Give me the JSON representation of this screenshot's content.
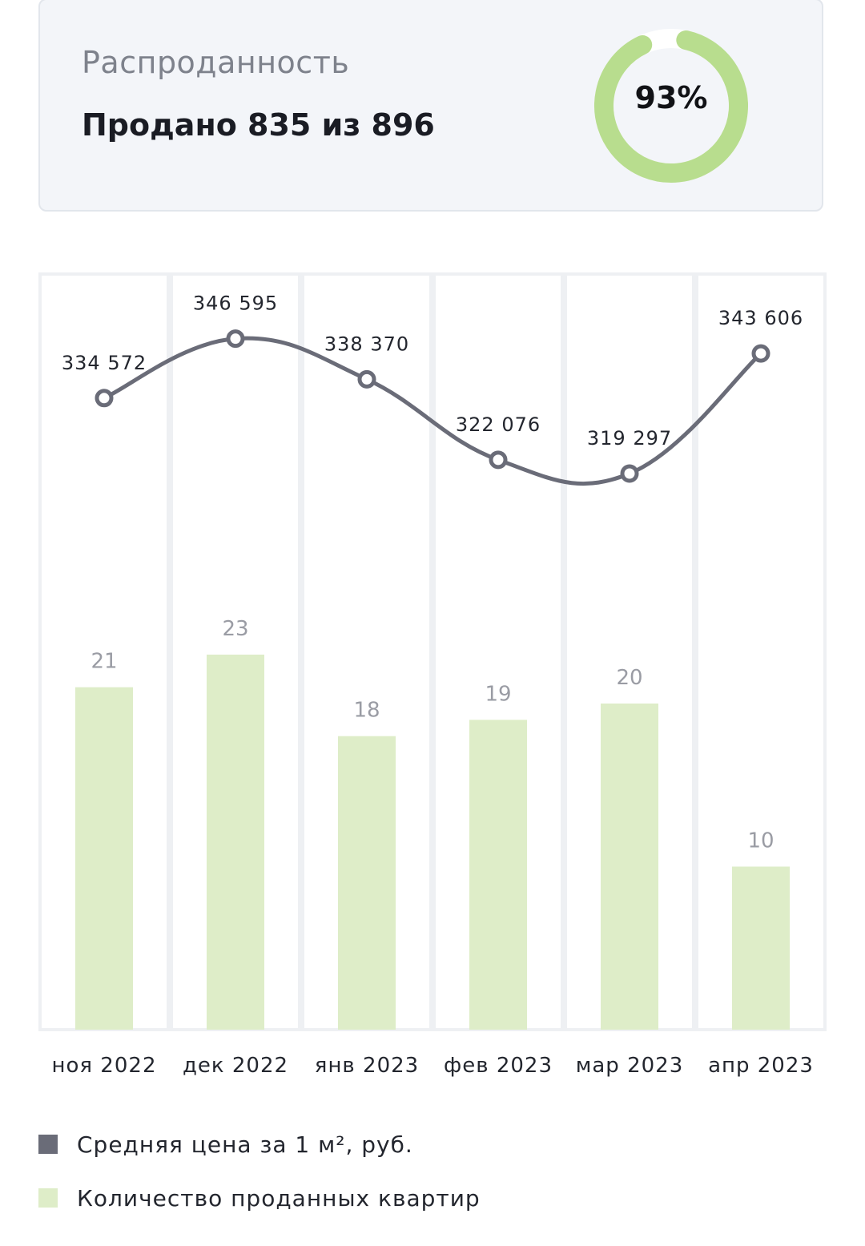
{
  "summary": {
    "title": "Распроданность",
    "sold_text": "Продано 835 из 896",
    "percent_label": "93%",
    "percent_value": 0.93,
    "donut_color": "#b8dd8e",
    "donut_track_color": "#ffffff"
  },
  "chart_data": {
    "type": "bar",
    "categories": [
      "ноя 2022",
      "дек 2022",
      "янв 2023",
      "фев 2023",
      "мар 2023",
      "апр 2023"
    ],
    "series": [
      {
        "name": "Количество проданных квартир",
        "type": "bar",
        "values": [
          21,
          23,
          18,
          19,
          20,
          10
        ],
        "value_labels": [
          "21",
          "23",
          "18",
          "19",
          "20",
          "10"
        ],
        "color": "#deedc8"
      },
      {
        "name": "Средняя цена за 1 м², руб.",
        "type": "line",
        "values": [
          334572,
          346595,
          338370,
          322076,
          319297,
          343606
        ],
        "value_labels": [
          "334 572",
          "346 595",
          "338 370",
          "322 076",
          "319 297",
          "343 606"
        ],
        "color": "#6a6c78"
      }
    ],
    "grid": false,
    "legend_position": "bottom-left"
  },
  "legend": [
    {
      "label": "Средняя цена за 1 м², руб.",
      "color": "#6a6c78"
    },
    {
      "label": "Количество проданных квартир",
      "color": "#deedc8"
    }
  ]
}
